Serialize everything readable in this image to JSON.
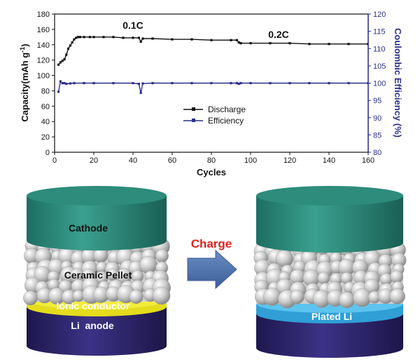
{
  "chart_data": {
    "type": "scatter",
    "xlabel": "Cycles",
    "ylabel_left": "Capacity(mAh g-1)",
    "ylabel_right": "Coulombic Efficiency (%)",
    "xlim": [
      0,
      160
    ],
    "ylim_left": [
      0,
      180
    ],
    "ylim_right": [
      80,
      120
    ],
    "x_ticks": [
      "0",
      "20",
      "40",
      "60",
      "80",
      "100",
      "120",
      "140",
      "160"
    ],
    "y_left_ticks": [
      "0",
      "20",
      "40",
      "60",
      "80",
      "100",
      "120",
      "140",
      "160",
      "180"
    ],
    "y_right_ticks": [
      "80",
      "85",
      "90",
      "95",
      "100",
      "105",
      "110",
      "115",
      "120"
    ],
    "annotations": [
      "0.1C",
      "0.2C"
    ],
    "legend_position": "center",
    "series": [
      {
        "name": "Discharge",
        "axis": "left",
        "color": "#111111",
        "x": [
          2,
          3,
          4,
          5,
          6,
          7,
          8,
          9,
          10,
          11,
          12,
          13,
          15,
          18,
          20,
          25,
          30,
          35,
          40,
          43,
          44,
          45,
          50,
          60,
          70,
          80,
          90,
          93,
          94,
          95,
          100,
          110,
          120,
          130,
          140,
          150,
          160
        ],
        "y": [
          114,
          117,
          119,
          121,
          127,
          135,
          139,
          143,
          147,
          149,
          150,
          150,
          150,
          150,
          150,
          150,
          150,
          149,
          149,
          149,
          144,
          148,
          148,
          147,
          147,
          146,
          146,
          146,
          143,
          142,
          142,
          142,
          142,
          141,
          141,
          141,
          141
        ]
      },
      {
        "name": "Efficiency",
        "axis": "right",
        "color": "#2b2f8c",
        "x": [
          2,
          3,
          4,
          5,
          6,
          8,
          10,
          15,
          20,
          30,
          40,
          43,
          44,
          45,
          50,
          60,
          70,
          80,
          90,
          93,
          94,
          95,
          100,
          110,
          120,
          130,
          140,
          150,
          160
        ],
        "y": [
          97.5,
          100.5,
          100,
          100,
          99.8,
          99.9,
          100,
          100,
          100,
          100,
          100,
          99.8,
          97.2,
          99.9,
          100,
          100,
          100,
          100,
          100,
          100,
          99.8,
          100,
          100,
          100,
          100,
          100,
          100,
          100,
          100
        ]
      }
    ]
  },
  "schematic": {
    "left_cell": {
      "cathode_label": "Cathode",
      "pellet_label": "Ceramic Pellet",
      "interlayer_label": "Ionic conductor",
      "anode_label": "Li  anode"
    },
    "arrow_label": "Charge",
    "right_cell": {
      "plated_label": "Plated Li"
    },
    "colors": {
      "cathode": "#2a8a7a",
      "pellet": "#c8c8c8",
      "ionic_conductor": "#e8e020",
      "anode": "#2c2466",
      "plated_li": "#3aaee0",
      "arrow": "#4a70a8",
      "charge_text": "#e0241c"
    }
  }
}
